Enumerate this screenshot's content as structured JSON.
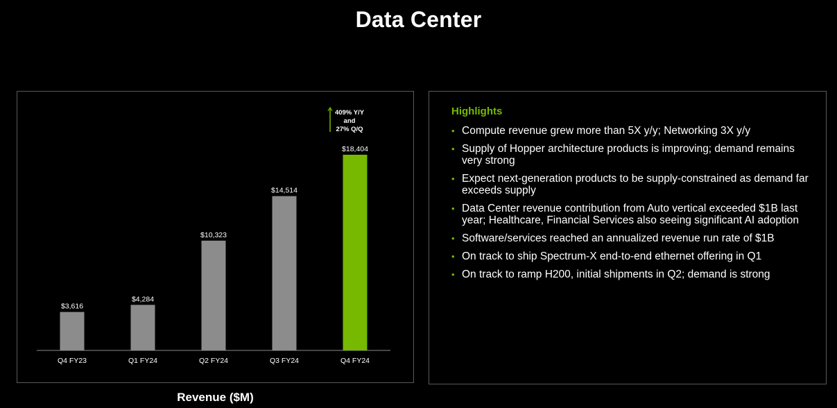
{
  "page": {
    "title": "Data Center",
    "caption": "Revenue ($M)"
  },
  "colors": {
    "background": "#000000",
    "accent_green": "#76b900",
    "bar_gray": "#8c8c8c",
    "panel_border": "#5a5a5a"
  },
  "chart_data": {
    "type": "bar",
    "categories": [
      "Q4 FY23",
      "Q1 FY24",
      "Q2 FY24",
      "Q3 FY24",
      "Q4 FY24"
    ],
    "values": [
      3616,
      4284,
      10323,
      14514,
      18404
    ],
    "data_labels": [
      "$3,616",
      "$4,284",
      "$10,323",
      "$14,514",
      "$18,404"
    ],
    "highlighted_category": "Q4 FY24",
    "annotation": {
      "lines": [
        "409% Y/Y",
        "and",
        "27% Q/Q"
      ],
      "icon": "up-arrow"
    },
    "title": "",
    "xlabel": "Revenue ($M)",
    "ylabel": "",
    "ylim": [
      0,
      18404
    ],
    "grid": false,
    "legend": "none"
  },
  "highlights": {
    "heading": "Highlights",
    "items": [
      "Compute revenue grew more than 5X y/y; Networking 3X y/y",
      "Supply of Hopper architecture products is improving; demand remains very strong",
      "Expect next-generation products to be supply-constrained as demand far exceeds supply",
      "Data Center revenue contribution from Auto vertical exceeded $1B last year; Healthcare, Financial Services also seeing significant AI adoption",
      "Software/services reached an annualized revenue run rate of $1B",
      "On track to ship Spectrum-X end-to-end ethernet offering in Q1",
      "On track to ramp H200, initial shipments in Q2; demand is strong"
    ]
  }
}
